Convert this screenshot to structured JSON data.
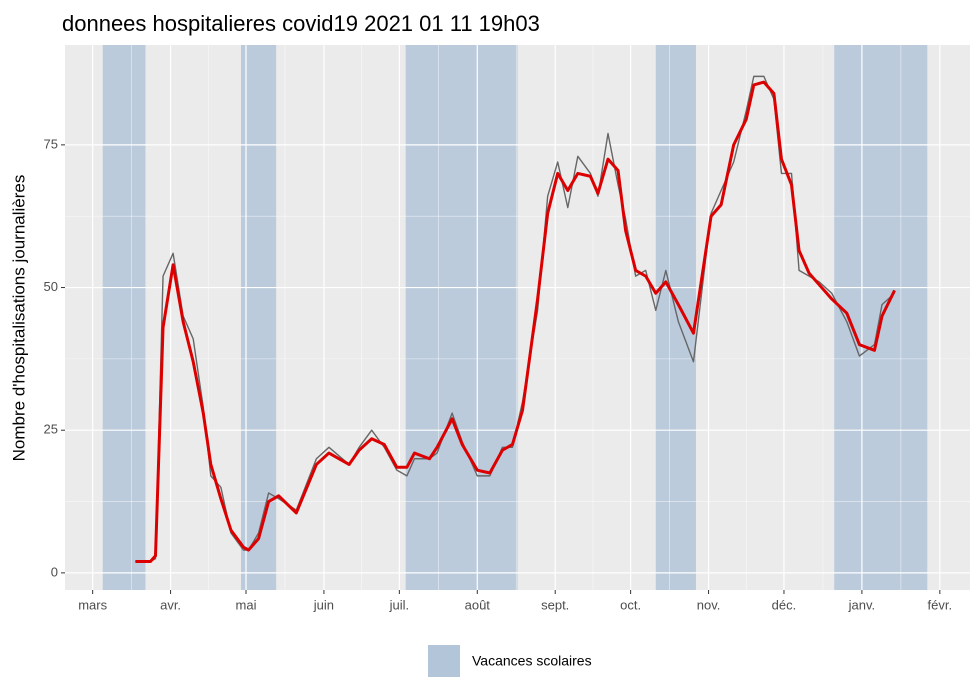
{
  "chart_data": {
    "type": "line",
    "title": "donnees hospitalieres covid19 2021 01 11 19h03",
    "y_label": "Nombre d'hospitalisations journalières",
    "x": [
      17,
      23,
      25,
      28,
      32,
      36,
      40,
      44,
      47,
      51,
      55,
      60,
      62,
      66,
      70,
      74,
      81,
      89,
      94,
      102,
      106,
      111,
      116,
      121,
      125,
      128,
      134,
      137,
      143,
      147,
      153,
      158,
      163,
      167,
      171,
      177,
      181,
      185,
      189,
      193,
      198,
      201,
      205,
      209,
      212,
      216,
      220,
      224,
      228,
      233,
      239,
      246,
      250,
      255,
      260,
      263,
      267,
      271,
      274,
      278,
      281,
      285,
      289,
      294,
      300,
      305,
      311,
      314,
      319
    ],
    "series": [
      {
        "color": "#666666",
        "width": 1.4,
        "values": [
          2,
          2,
          2.5,
          52,
          56,
          45,
          41,
          29,
          17,
          15,
          7,
          4,
          4,
          7,
          14,
          13,
          11,
          20,
          22,
          19,
          22,
          25,
          22,
          18,
          17,
          20,
          20,
          21,
          28,
          23,
          17,
          17,
          22,
          22,
          30,
          46,
          66,
          72,
          64,
          73,
          70,
          66,
          77,
          68,
          62,
          52,
          53,
          46,
          53,
          44,
          37,
          63,
          67,
          72,
          81,
          87,
          87,
          83,
          70,
          70,
          53,
          52,
          51,
          49,
          44,
          38,
          40,
          47,
          49
        ]
      },
      {
        "color": "#dd0000",
        "width": 3,
        "values": [
          2,
          2,
          3,
          43,
          54,
          44,
          37,
          28,
          19,
          13,
          7.5,
          4.5,
          4,
          6,
          12.5,
          13.5,
          10.5,
          19,
          21,
          19,
          21.5,
          23.5,
          22.5,
          18.5,
          18.5,
          21,
          20,
          22,
          27,
          22.5,
          18,
          17.5,
          21.5,
          22.5,
          28.5,
          48,
          63,
          70,
          67,
          70,
          69.5,
          66.5,
          72.5,
          70.5,
          60,
          53,
          52,
          49,
          51,
          47,
          42,
          62.5,
          64.5,
          75,
          79.5,
          85.5,
          86,
          84,
          72.5,
          68,
          56.5,
          52.5,
          50.5,
          48,
          45.5,
          40,
          39,
          45,
          49.5
        ]
      }
    ],
    "bands": [
      [
        4,
        21
      ],
      [
        59,
        73
      ],
      [
        124.5,
        169
      ],
      [
        224,
        240
      ],
      [
        295,
        332
      ]
    ],
    "band_label": "Vacances scolaires",
    "band_color": "#b3c6d9",
    "xlim": [
      -11,
      349
    ],
    "xticks": [
      {
        "value": 0,
        "label": "mars"
      },
      {
        "value": 31,
        "label": "avr."
      },
      {
        "value": 61,
        "label": "mai"
      },
      {
        "value": 92,
        "label": "juin"
      },
      {
        "value": 122,
        "label": "juil."
      },
      {
        "value": 153,
        "label": "août"
      },
      {
        "value": 184,
        "label": "sept."
      },
      {
        "value": 214,
        "label": "oct."
      },
      {
        "value": 245,
        "label": "nov."
      },
      {
        "value": 275,
        "label": "déc."
      },
      {
        "value": 306,
        "label": "janv."
      },
      {
        "value": 337,
        "label": "févr."
      }
    ],
    "ylim": [
      -3,
      92.5
    ],
    "yticks": [
      0,
      25,
      50,
      75
    ],
    "grid": true,
    "legend": "bottom"
  }
}
